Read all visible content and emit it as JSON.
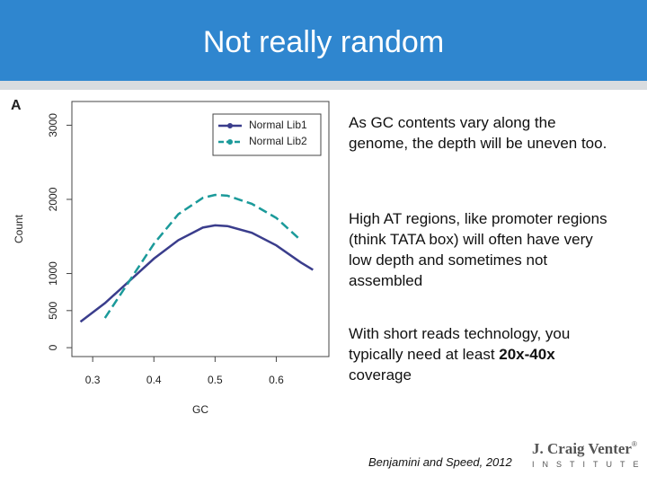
{
  "header": {
    "title": "Not really random"
  },
  "chart_data": {
    "type": "line",
    "panel_label": "A",
    "x_label": "GC",
    "y_label": "Count",
    "x": [
      0.28,
      0.32,
      0.36,
      0.4,
      0.44,
      0.48,
      0.5,
      0.52,
      0.56,
      0.6,
      0.64,
      0.66
    ],
    "series": [
      {
        "name": "Normal Lib1",
        "color": "#3a3d8c",
        "dash": false,
        "values": [
          350,
          600,
          900,
          1200,
          1450,
          1620,
          1650,
          1640,
          1550,
          1380,
          1150,
          1050
        ]
      },
      {
        "name": "Normal Lib2",
        "color": "#1b9a9a",
        "dash": true,
        "values": [
          null,
          400,
          900,
          1400,
          1800,
          2020,
          2060,
          2050,
          1940,
          1750,
          1450,
          null
        ]
      }
    ],
    "xlim": [
      0.266,
      0.686
    ],
    "ylim": [
      -120,
      3320
    ],
    "xticks": [
      0.3,
      0.4,
      0.5,
      0.6
    ],
    "yticks": [
      0,
      500,
      1000,
      2000,
      3000
    ]
  },
  "bullets": [
    [
      "As GC contents vary along the genome, the depth will be uneven too."
    ],
    [
      "High AT regions, like promoter regions (think TATA box) will often have very low depth and sometimes not assembled"
    ],
    [
      "With short reads technology, you typically need at least ",
      "20x-40x",
      " coverage"
    ]
  ],
  "citation": "Benjamini and Speed, 2012",
  "logo": {
    "name": "J. Craig Venter",
    "mark": "®",
    "sub": "INSTITUTE"
  }
}
